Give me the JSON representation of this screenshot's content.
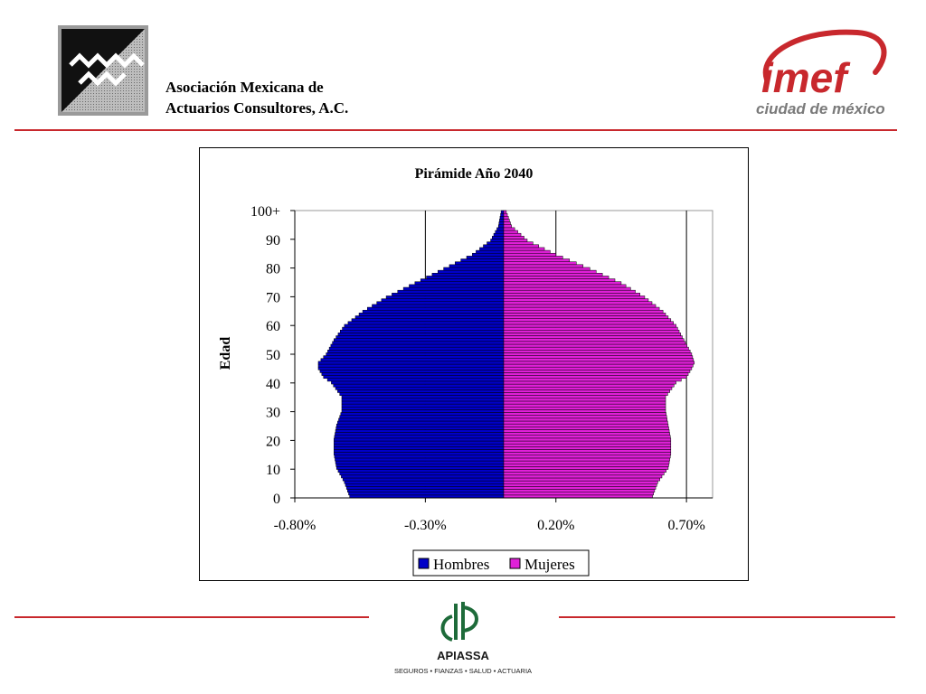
{
  "header": {
    "org_name_line1": "Asociación Mexicana de",
    "org_name_line2": "Actuarios Consultores, A.C.",
    "logo_right_text_main": "imef",
    "logo_right_text_sub": "ciudad de méxico"
  },
  "colors": {
    "accent_red": "#c8282d",
    "hombres": "#0000c8",
    "mujeres": "#e020d8"
  },
  "chart_data": {
    "type": "bar",
    "orientation": "horizontal",
    "subtype": "population-pyramid",
    "title": "Pirámide Año 2040",
    "xlabel": "",
    "ylabel": "Edad",
    "x_ticks": [
      "-0.80%",
      "-0.30%",
      "0.20%",
      "0.70%"
    ],
    "x_tick_values": [
      -0.8,
      -0.3,
      0.2,
      0.7
    ],
    "xlim": [
      -0.8,
      0.8
    ],
    "y_ticks": [
      "0",
      "10",
      "20",
      "30",
      "40",
      "50",
      "60",
      "70",
      "80",
      "90",
      "100+"
    ],
    "y_tick_values": [
      0,
      10,
      20,
      30,
      40,
      50,
      60,
      70,
      80,
      90,
      100
    ],
    "grid": "vertical",
    "legend_position": "bottom",
    "series": [
      {
        "name": "Hombres",
        "ages": [
          0,
          5,
          10,
          15,
          20,
          25,
          30,
          35,
          40,
          42,
          45,
          47,
          50,
          55,
          60,
          65,
          70,
          75,
          80,
          85,
          90,
          95,
          100
        ],
        "values": [
          -0.59,
          -0.61,
          -0.64,
          -0.65,
          -0.65,
          -0.64,
          -0.62,
          -0.62,
          -0.66,
          -0.69,
          -0.71,
          -0.71,
          -0.68,
          -0.65,
          -0.61,
          -0.54,
          -0.45,
          -0.34,
          -0.23,
          -0.12,
          -0.05,
          -0.02,
          -0.01
        ]
      },
      {
        "name": "Mujeres",
        "ages": [
          0,
          5,
          10,
          15,
          20,
          25,
          30,
          35,
          40,
          42,
          45,
          47,
          50,
          55,
          60,
          65,
          70,
          75,
          80,
          85,
          90,
          95,
          100
        ],
        "values": [
          0.57,
          0.59,
          0.63,
          0.64,
          0.64,
          0.63,
          0.62,
          0.62,
          0.66,
          0.7,
          0.72,
          0.73,
          0.72,
          0.69,
          0.66,
          0.61,
          0.54,
          0.45,
          0.33,
          0.2,
          0.09,
          0.03,
          0.01
        ]
      }
    ]
  },
  "footer": {
    "brand": "APIASSA",
    "tagline": "SEGUROS  •  FIANZAS  •  SALUD  •  ACTUARIA"
  }
}
